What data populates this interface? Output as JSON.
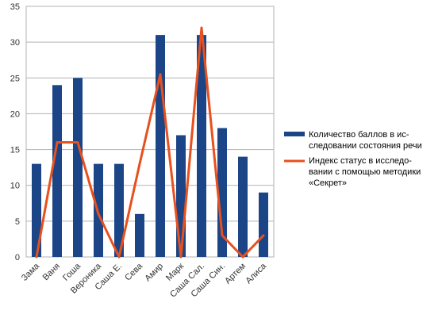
{
  "chart_data": {
    "type": "bar",
    "categories": [
      "Зама",
      "Ваня",
      "Гоша",
      "Вероника",
      "Саша Е.",
      "Сева",
      "Амир",
      "Марк",
      "Саша Сал.",
      "Саша Син.",
      "Артем",
      "Алиса"
    ],
    "series": [
      {
        "name": "Количество баллов в ис-следовании состояния речи",
        "type": "bar",
        "color": "#1c4587",
        "values": [
          13,
          24,
          25,
          13,
          13,
          6,
          31,
          17,
          31,
          18,
          14,
          9
        ],
        "legend_lines": [
          "Количество баллов в ис-",
          "следовании состояния речи"
        ]
      },
      {
        "name": "Индекс статус в исследо-вании с помощью методики «Секрет»",
        "type": "line",
        "color": "#e8501e",
        "values": [
          0,
          16,
          16,
          6,
          0,
          13,
          25.5,
          0,
          32,
          3,
          0,
          3
        ],
        "legend_lines": [
          "Индекс статус в исследо-",
          "вании с помощью методики",
          "«Секрет»"
        ]
      }
    ],
    "ylim": [
      0,
      35
    ],
    "yticks": [
      0,
      5,
      10,
      15,
      20,
      25,
      30,
      35
    ],
    "grid": true,
    "legend_position": "right"
  }
}
